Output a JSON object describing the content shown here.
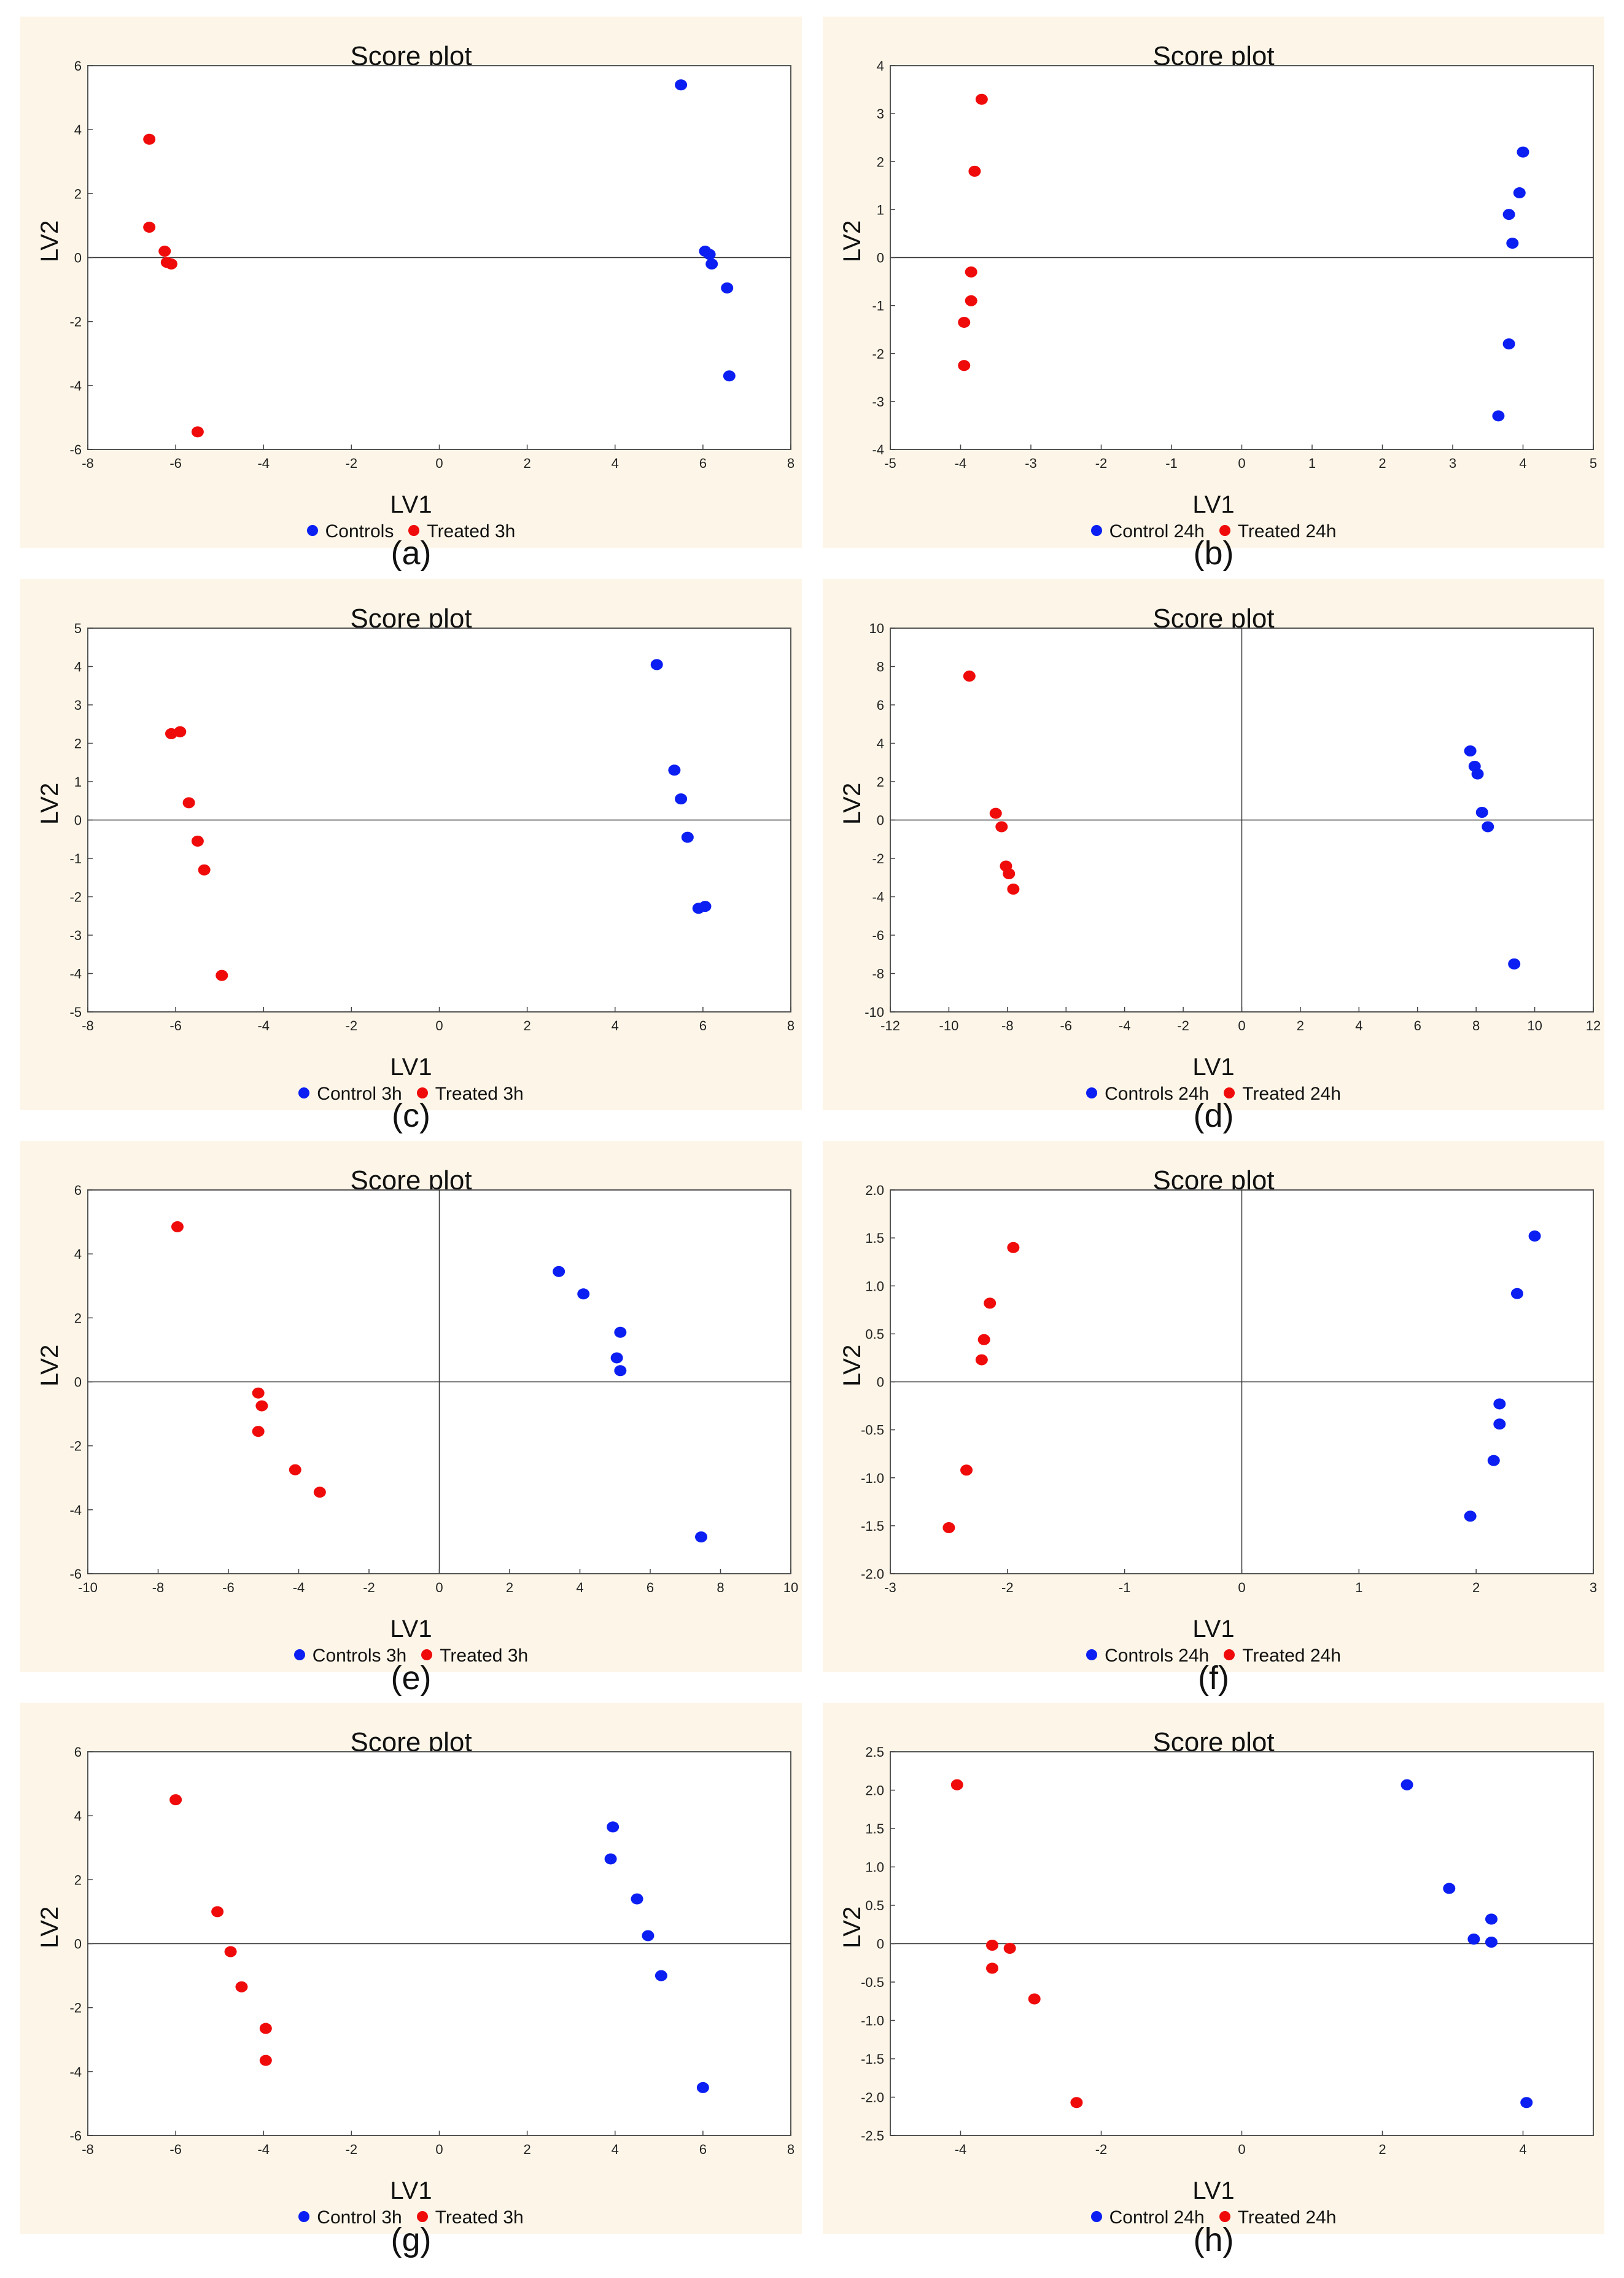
{
  "colors": {
    "control": "#0b1ff2",
    "treated": "#f00b0b"
  },
  "chart_data": [
    {
      "id": "a",
      "type": "scatter",
      "title": "Score plot",
      "xlabel": "LV1",
      "ylabel": "LV2",
      "caption": "(a)",
      "xlim": [
        -8,
        8
      ],
      "ylim": [
        -6,
        6
      ],
      "xticks": [
        "-8",
        "-6",
        "-4",
        "-2",
        "0",
        "2",
        "4",
        "6",
        "8"
      ],
      "yticks": [
        "-6",
        "-4",
        "-2",
        "0",
        "2",
        "4",
        "6"
      ],
      "vline": false,
      "hline": true,
      "series": [
        {
          "name": "Controls",
          "color": "#0b1ff2",
          "points": [
            [
              5.5,
              5.4
            ],
            [
              6.05,
              0.2
            ],
            [
              6.15,
              0.1
            ],
            [
              6.2,
              -0.2
            ],
            [
              6.55,
              -0.95
            ],
            [
              6.6,
              -3.7
            ]
          ]
        },
        {
          "name": "Treated 3h",
          "color": "#f00b0b",
          "points": [
            [
              -6.6,
              3.7
            ],
            [
              -6.6,
              0.95
            ],
            [
              -6.25,
              0.2
            ],
            [
              -6.2,
              -0.15
            ],
            [
              -6.1,
              -0.2
            ],
            [
              -5.5,
              -5.45
            ]
          ]
        }
      ]
    },
    {
      "id": "b",
      "type": "scatter",
      "title": "Score plot",
      "xlabel": "LV1",
      "ylabel": "LV2",
      "caption": "(b)",
      "xlim": [
        -5,
        5
      ],
      "ylim": [
        -4,
        4
      ],
      "xticks": [
        "-5",
        "-4",
        "-3",
        "-2",
        "-1",
        "0",
        "1",
        "2",
        "3",
        "4",
        "5"
      ],
      "yticks": [
        "-4",
        "-3",
        "-2",
        "-1",
        "0",
        "1",
        "2",
        "3",
        "4"
      ],
      "vline": false,
      "hline": true,
      "series": [
        {
          "name": "Control 24h",
          "color": "#0b1ff2",
          "points": [
            [
              4.0,
              2.2
            ],
            [
              3.95,
              1.35
            ],
            [
              3.8,
              0.9
            ],
            [
              3.85,
              0.3
            ],
            [
              3.8,
              -1.8
            ],
            [
              3.65,
              -3.3
            ]
          ]
        },
        {
          "name": "Treated 24h",
          "color": "#f00b0b",
          "points": [
            [
              -3.7,
              3.3
            ],
            [
              -3.8,
              1.8
            ],
            [
              -3.85,
              -0.3
            ],
            [
              -3.85,
              -0.9
            ],
            [
              -3.95,
              -1.35
            ],
            [
              -3.95,
              -2.25
            ]
          ]
        }
      ]
    },
    {
      "id": "c",
      "type": "scatter",
      "title": "Score plot",
      "xlabel": "LV1",
      "ylabel": "LV2",
      "caption": "(c)",
      "xlim": [
        -8,
        8
      ],
      "ylim": [
        -5,
        5
      ],
      "xticks": [
        "-8",
        "-6",
        "-4",
        "-2",
        "0",
        "2",
        "4",
        "6",
        "8"
      ],
      "yticks": [
        "-5",
        "-4",
        "-3",
        "-2",
        "-1",
        "0",
        "1",
        "2",
        "3",
        "4",
        "5"
      ],
      "vline": false,
      "hline": true,
      "series": [
        {
          "name": "Control 3h",
          "color": "#0b1ff2",
          "points": [
            [
              4.95,
              4.05
            ],
            [
              5.35,
              1.3
            ],
            [
              5.5,
              0.55
            ],
            [
              5.65,
              -0.45
            ],
            [
              5.9,
              -2.3
            ],
            [
              6.05,
              -2.25
            ]
          ]
        },
        {
          "name": "Treated 3h",
          "color": "#f00b0b",
          "points": [
            [
              -6.1,
              2.25
            ],
            [
              -5.9,
              2.3
            ],
            [
              -5.7,
              0.45
            ],
            [
              -5.5,
              -0.55
            ],
            [
              -5.35,
              -1.3
            ],
            [
              -4.95,
              -4.05
            ]
          ]
        }
      ]
    },
    {
      "id": "d",
      "type": "scatter",
      "title": "Score plot",
      "xlabel": "LV1",
      "ylabel": "LV2",
      "caption": "(d)",
      "xlim": [
        -12,
        12
      ],
      "ylim": [
        -10,
        10
      ],
      "xticks": [
        "-12",
        "-10",
        "-8",
        "-6",
        "-4",
        "-2",
        "0",
        "2",
        "4",
        "6",
        "8",
        "10",
        "12"
      ],
      "yticks": [
        "-10",
        "-8",
        "-6",
        "-4",
        "-2",
        "0",
        "2",
        "4",
        "6",
        "8",
        "10"
      ],
      "vline": true,
      "hline": true,
      "series": [
        {
          "name": "Controls 24h",
          "color": "#0b1ff2",
          "points": [
            [
              7.8,
              3.6
            ],
            [
              7.95,
              2.8
            ],
            [
              8.05,
              2.4
            ],
            [
              8.2,
              0.4
            ],
            [
              8.4,
              -0.35
            ],
            [
              9.3,
              -7.5
            ]
          ]
        },
        {
          "name": "Treated 24h",
          "color": "#f00b0b",
          "points": [
            [
              -9.3,
              7.5
            ],
            [
              -8.4,
              0.35
            ],
            [
              -8.2,
              -0.35
            ],
            [
              -8.05,
              -2.4
            ],
            [
              -7.95,
              -2.8
            ],
            [
              -7.8,
              -3.6
            ]
          ]
        }
      ]
    },
    {
      "id": "e",
      "type": "scatter",
      "title": "Score plot",
      "xlabel": "LV1",
      "ylabel": "LV2",
      "caption": "(e)",
      "xlim": [
        -10,
        10
      ],
      "ylim": [
        -6,
        6
      ],
      "xticks": [
        "-10",
        "-8",
        "-6",
        "-4",
        "-2",
        "0",
        "2",
        "4",
        "6",
        "8",
        "10"
      ],
      "yticks": [
        "-6",
        "-4",
        "-2",
        "0",
        "2",
        "4",
        "6"
      ],
      "vline": true,
      "hline": true,
      "series": [
        {
          "name": "Controls 3h",
          "color": "#0b1ff2",
          "points": [
            [
              3.4,
              3.45
            ],
            [
              4.1,
              2.75
            ],
            [
              5.15,
              1.55
            ],
            [
              5.05,
              0.75
            ],
            [
              5.15,
              0.35
            ],
            [
              7.45,
              -4.85
            ]
          ]
        },
        {
          "name": "Treated 3h",
          "color": "#f00b0b",
          "points": [
            [
              -7.45,
              4.85
            ],
            [
              -5.15,
              -0.35
            ],
            [
              -5.05,
              -0.75
            ],
            [
              -5.15,
              -1.55
            ],
            [
              -4.1,
              -2.75
            ],
            [
              -3.4,
              -3.45
            ]
          ]
        }
      ]
    },
    {
      "id": "f",
      "type": "scatter",
      "title": "Score plot",
      "xlabel": "LV1",
      "ylabel": "LV2",
      "caption": "(f)",
      "xlim": [
        -3,
        3
      ],
      "ylim": [
        -2,
        2
      ],
      "xticks": [
        "-3",
        "-2",
        "-1",
        "0",
        "1",
        "2",
        "3"
      ],
      "yticks": [
        "-2.0",
        "-1.5",
        "-1.0",
        "-0.5",
        "0",
        "0.5",
        "1.0",
        "1.5",
        "2.0"
      ],
      "vline": true,
      "hline": true,
      "series": [
        {
          "name": "Controls 24h",
          "color": "#0b1ff2",
          "points": [
            [
              2.5,
              1.52
            ],
            [
              2.35,
              0.92
            ],
            [
              2.2,
              -0.23
            ],
            [
              2.2,
              -0.44
            ],
            [
              2.15,
              -0.82
            ],
            [
              1.95,
              -1.4
            ]
          ]
        },
        {
          "name": "Treated 24h",
          "color": "#f00b0b",
          "points": [
            [
              -1.95,
              1.4
            ],
            [
              -2.15,
              0.82
            ],
            [
              -2.2,
              0.44
            ],
            [
              -2.22,
              0.23
            ],
            [
              -2.35,
              -0.92
            ],
            [
              -2.5,
              -1.52
            ]
          ]
        }
      ]
    },
    {
      "id": "g",
      "type": "scatter",
      "title": "Score plot",
      "xlabel": "LV1",
      "ylabel": "LV2",
      "caption": "(g)",
      "xlim": [
        -8,
        8
      ],
      "ylim": [
        -6,
        6
      ],
      "xticks": [
        "-8",
        "-6",
        "-4",
        "-2",
        "0",
        "2",
        "4",
        "6",
        "8"
      ],
      "yticks": [
        "-6",
        "-4",
        "-2",
        "0",
        "2",
        "4",
        "6"
      ],
      "vline": false,
      "hline": true,
      "series": [
        {
          "name": "Control 3h",
          "color": "#0b1ff2",
          "points": [
            [
              3.95,
              3.65
            ],
            [
              3.9,
              2.65
            ],
            [
              4.5,
              1.4
            ],
            [
              4.75,
              0.25
            ],
            [
              5.05,
              -1.0
            ],
            [
              6.0,
              -4.5
            ]
          ]
        },
        {
          "name": "Treated 3h",
          "color": "#f00b0b",
          "points": [
            [
              -6.0,
              4.5
            ],
            [
              -5.05,
              1.0
            ],
            [
              -4.75,
              -0.25
            ],
            [
              -4.5,
              -1.35
            ],
            [
              -3.95,
              -2.65
            ],
            [
              -3.95,
              -3.65
            ]
          ]
        }
      ]
    },
    {
      "id": "h",
      "type": "scatter",
      "title": "Score plot",
      "xlabel": "LV1",
      "ylabel": "LV2",
      "caption": "(h)",
      "xlim": [
        -5,
        5
      ],
      "ylim": [
        -2.5,
        2.5
      ],
      "xticks": [
        "-4",
        "-2",
        "0",
        "2",
        "4"
      ],
      "yticks": [
        "-2.5",
        "-2.0",
        "-1.5",
        "-1.0",
        "-0.5",
        "0",
        "0.5",
        "1.0",
        "1.5",
        "2.0",
        "2.5"
      ],
      "vline": false,
      "hline": true,
      "series": [
        {
          "name": "Control 24h",
          "color": "#0b1ff2",
          "points": [
            [
              2.35,
              2.07
            ],
            [
              2.95,
              0.72
            ],
            [
              3.3,
              0.06
            ],
            [
              3.55,
              0.32
            ],
            [
              3.55,
              0.02
            ],
            [
              4.05,
              -2.07
            ]
          ]
        },
        {
          "name": "Treated 24h",
          "color": "#f00b0b",
          "points": [
            [
              -4.05,
              2.07
            ],
            [
              -3.55,
              -0.02
            ],
            [
              -3.3,
              -0.06
            ],
            [
              -3.55,
              -0.32
            ],
            [
              -2.95,
              -0.72
            ],
            [
              -2.35,
              -2.07
            ]
          ]
        }
      ]
    }
  ]
}
